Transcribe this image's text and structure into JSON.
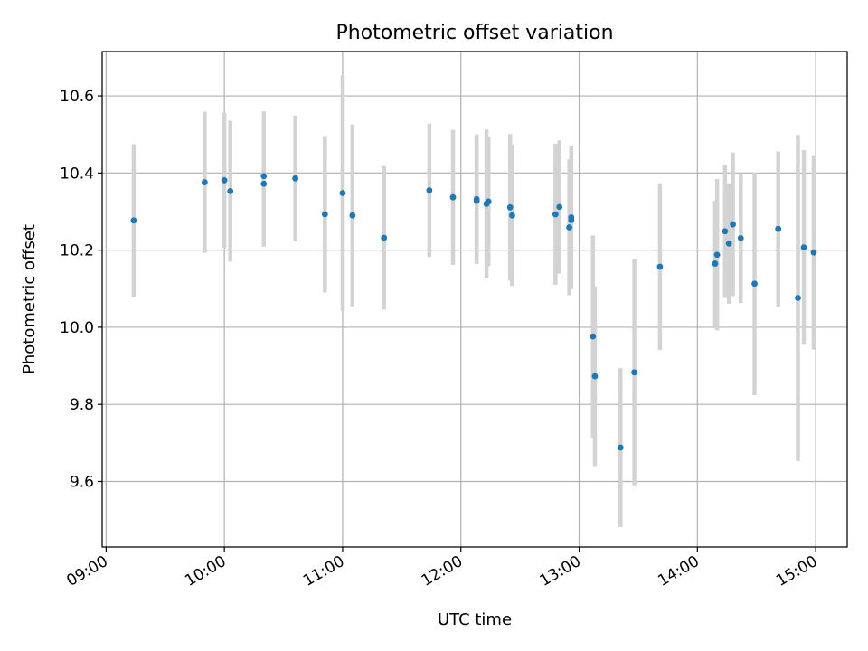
{
  "chart_data": {
    "type": "scatter",
    "title": "Photometric offset variation",
    "xlabel": "UTC time",
    "ylabel": "Photometric offset",
    "x_ticks": [
      "09:00",
      "10:00",
      "11:00",
      "12:00",
      "13:00",
      "14:00",
      "15:00"
    ],
    "y_ticks": [
      "9.6",
      "9.8",
      "10.0",
      "10.2",
      "10.4",
      "10.6"
    ],
    "xlim": [
      "08:58",
      "15:16"
    ],
    "ylim": [
      9.43,
      10.715
    ],
    "grid": true,
    "point_color": "#1f77b4",
    "errorbar_color": "#d3d3d3",
    "points": [
      {
        "x": "09:14",
        "y": 10.277,
        "err": 0.198
      },
      {
        "x": "09:50",
        "y": 10.376,
        "err": 0.183
      },
      {
        "x": "10:00",
        "y": 10.381,
        "err": 0.175
      },
      {
        "x": "10:03",
        "y": 10.353,
        "err": 0.183
      },
      {
        "x": "10:20",
        "y": 10.392,
        "err": 0.168
      },
      {
        "x": "10:20",
        "y": 10.372,
        "err": 0.163
      },
      {
        "x": "10:36",
        "y": 10.386,
        "err": 0.163
      },
      {
        "x": "10:51",
        "y": 10.293,
        "err": 0.203
      },
      {
        "x": "11:00",
        "y": 10.348,
        "err": 0.306
      },
      {
        "x": "11:05",
        "y": 10.29,
        "err": 0.236
      },
      {
        "x": "11:21",
        "y": 10.232,
        "err": 0.186
      },
      {
        "x": "11:44",
        "y": 10.355,
        "err": 0.173
      },
      {
        "x": "11:56",
        "y": 10.337,
        "err": 0.175
      },
      {
        "x": "12:08",
        "y": 10.328,
        "err": 0.163
      },
      {
        "x": "12:08",
        "y": 10.332,
        "err": 0.168
      },
      {
        "x": "12:13",
        "y": 10.32,
        "err": 0.193
      },
      {
        "x": "12:14",
        "y": 10.326,
        "err": 0.168
      },
      {
        "x": "12:25",
        "y": 10.311,
        "err": 0.19
      },
      {
        "x": "12:26",
        "y": 10.29,
        "err": 0.183
      },
      {
        "x": "12:48",
        "y": 10.293,
        "err": 0.183
      },
      {
        "x": "12:50",
        "y": 10.312,
        "err": 0.173
      },
      {
        "x": "12:55",
        "y": 10.259,
        "err": 0.176
      },
      {
        "x": "12:56",
        "y": 10.278,
        "err": 0.178
      },
      {
        "x": "12:56",
        "y": 10.285,
        "err": 0.186
      },
      {
        "x": "13:07",
        "y": 9.976,
        "err": 0.262
      },
      {
        "x": "13:08",
        "y": 9.873,
        "err": 0.233
      },
      {
        "x": "13:21",
        "y": 9.688,
        "err": 0.206
      },
      {
        "x": "13:28",
        "y": 9.883,
        "err": 0.293
      },
      {
        "x": "13:41",
        "y": 10.157,
        "err": 0.216
      },
      {
        "x": "14:09",
        "y": 10.165,
        "err": 0.163
      },
      {
        "x": "14:10",
        "y": 10.188,
        "err": 0.196
      },
      {
        "x": "14:14",
        "y": 10.249,
        "err": 0.173
      },
      {
        "x": "14:16",
        "y": 10.217,
        "err": 0.156
      },
      {
        "x": "14:18",
        "y": 10.267,
        "err": 0.186
      },
      {
        "x": "14:22",
        "y": 10.231,
        "err": 0.168
      },
      {
        "x": "14:29",
        "y": 10.113,
        "err": 0.289
      },
      {
        "x": "14:41",
        "y": 10.255,
        "err": 0.201
      },
      {
        "x": "14:51",
        "y": 10.076,
        "err": 0.423
      },
      {
        "x": "14:54",
        "y": 10.207,
        "err": 0.252
      },
      {
        "x": "14:59",
        "y": 10.194,
        "err": 0.252
      }
    ]
  }
}
